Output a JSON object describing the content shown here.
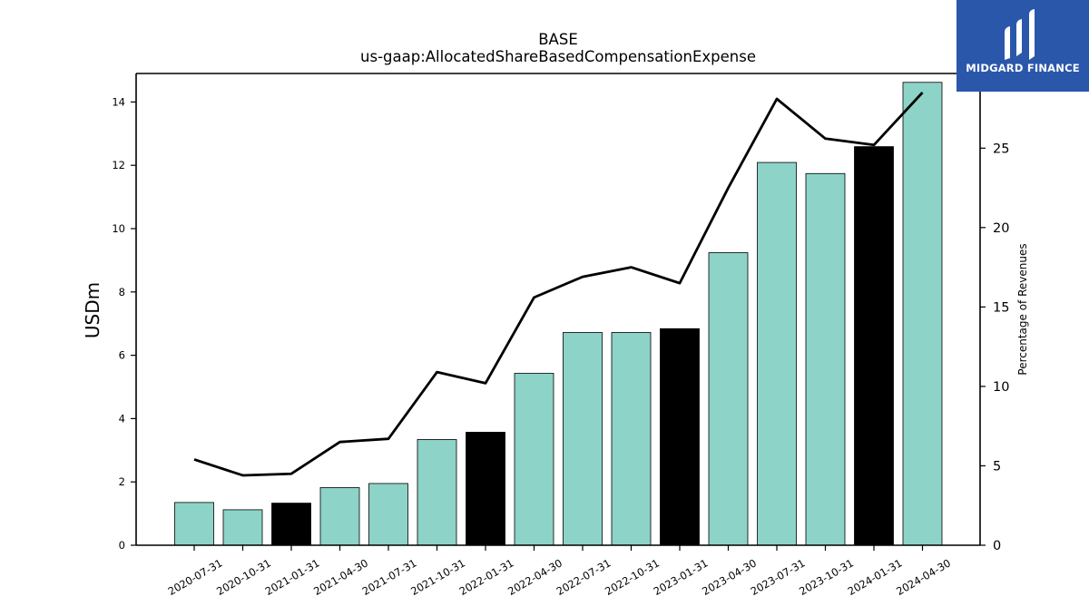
{
  "brand": {
    "name": "MIDGARD FINANCE",
    "logo_color": "#2b57ab",
    "icon": "midgard-bars-logo"
  },
  "colors": {
    "bar_default": "#8dd3c7",
    "bar_highlight": "#000000",
    "line": "#000000"
  },
  "chart_data": {
    "type": "bar",
    "title": "BASE",
    "subtitle": "us-gaap:AllocatedShareBasedCompensationExpense",
    "ylabel": "USDm",
    "y2label": "Percentage of Revenues",
    "categories": [
      "2020-07-31",
      "2020-10-31",
      "2021-01-31",
      "2021-04-30",
      "2021-07-31",
      "2021-10-31",
      "2022-01-31",
      "2022-04-30",
      "2022-07-31",
      "2022-10-31",
      "2023-01-31",
      "2023-04-30",
      "2023-07-31",
      "2023-10-31",
      "2024-01-31",
      "2024-04-30"
    ],
    "series": [
      {
        "values": [
          1.35,
          1.12,
          1.33,
          1.82,
          1.95,
          3.34,
          3.57,
          5.43,
          6.72,
          6.72,
          6.84,
          9.24,
          12.09,
          11.74,
          12.59,
          14.62
        ],
        "highlighted": [
          false,
          false,
          true,
          false,
          false,
          false,
          true,
          false,
          false,
          false,
          true,
          false,
          false,
          false,
          true,
          false
        ]
      },
      {
        "axis": "right",
        "type": "line",
        "values": [
          5.4,
          4.4,
          4.5,
          6.5,
          6.7,
          10.9,
          10.2,
          15.6,
          16.9,
          17.5,
          16.5,
          22.5,
          28.1,
          25.6,
          25.2,
          28.5
        ]
      }
    ],
    "ylim": [
      0,
      14.9
    ],
    "y2lim": [
      0,
      29.7
    ],
    "yticks": [
      0,
      2,
      4,
      6,
      8,
      10,
      12,
      14
    ],
    "y2ticks": [
      0,
      5,
      10,
      15,
      20,
      25
    ],
    "grid": false,
    "legend": "none"
  }
}
